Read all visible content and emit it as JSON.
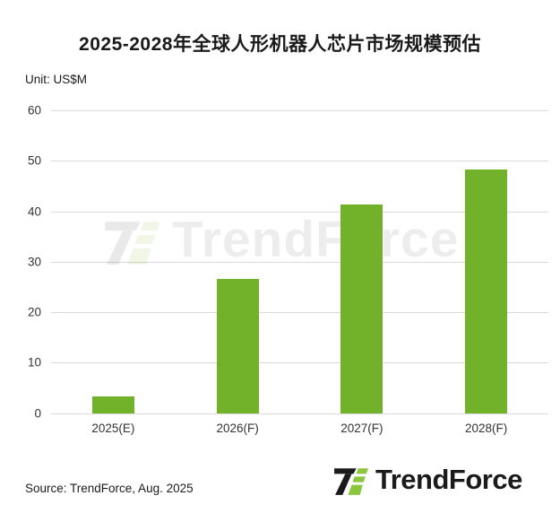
{
  "title": "2025-2028年全球人形机器人芯片市场规模预估",
  "unit_label": "Unit: US$M",
  "source": "Source: TrendForce, Aug. 2025",
  "watermark_text": "TrendForce",
  "logo": {
    "text": "TrendForce"
  },
  "colors": {
    "bar": "#72B22A",
    "gridline": "#D9D9D9",
    "axis_text": "#333333",
    "title_text": "#1A1A1A",
    "logo_black": "#1B1B1B",
    "logo_green": "#8CC63F"
  },
  "chart_data": {
    "type": "bar",
    "categories": [
      "2025(E)",
      "2026(F)",
      "2027(F)",
      "2028(F)"
    ],
    "values": [
      3.3,
      26.6,
      41.3,
      48.3
    ],
    "title": "2025-2028年全球人形机器人芯片市场规模预估",
    "xlabel": "",
    "ylabel": "Unit: US$M",
    "ylim": [
      0,
      60
    ],
    "yticks": [
      0,
      10,
      20,
      30,
      40,
      50,
      60
    ],
    "grid": true,
    "legend": false,
    "bar_color": "#72B22A"
  }
}
